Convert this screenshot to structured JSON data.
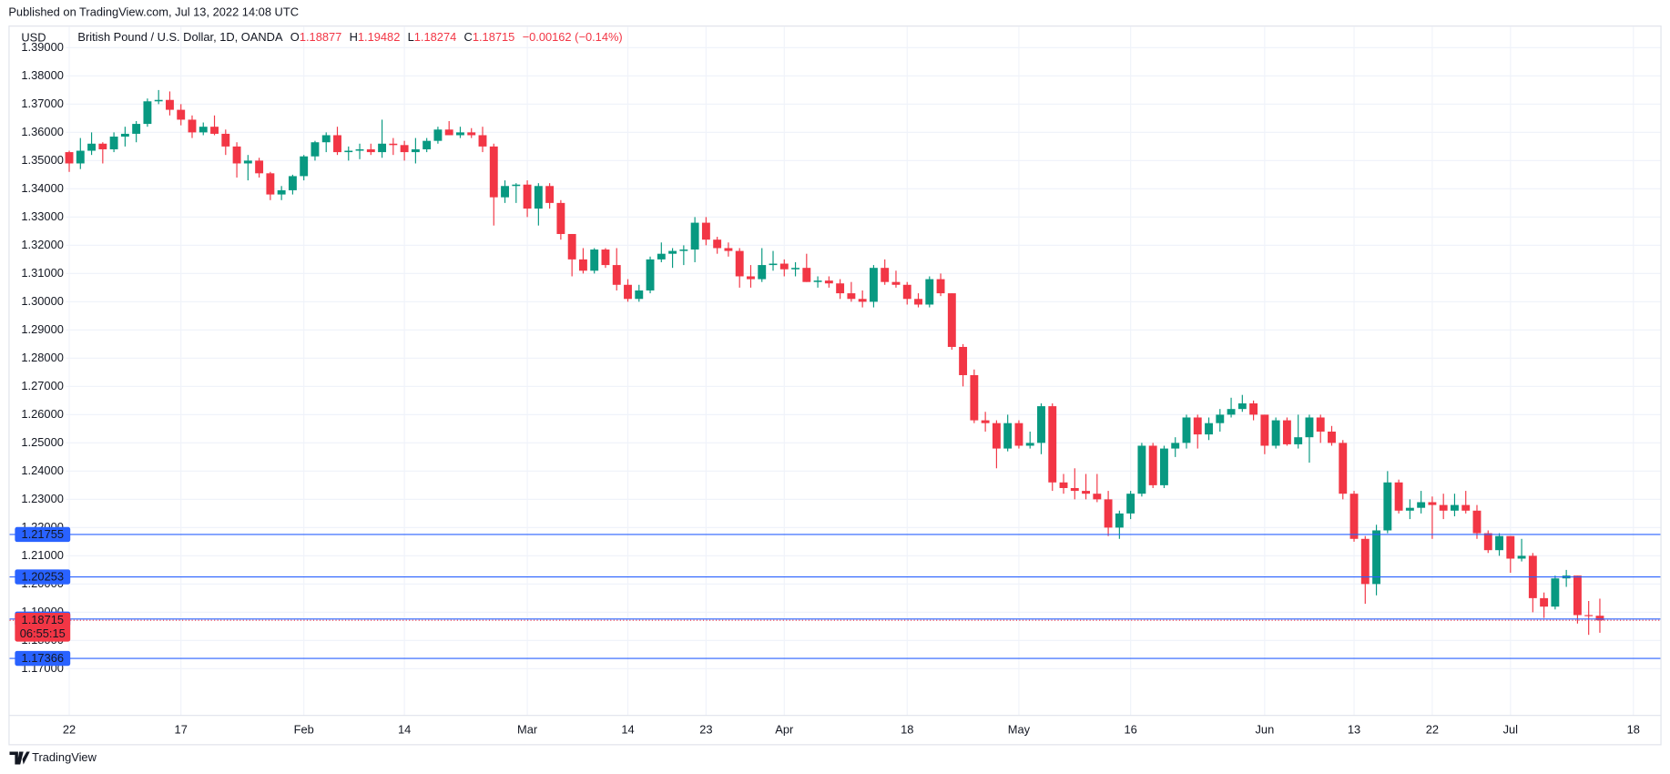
{
  "header": {
    "published": "Published on TradingView.com, Jul 13, 2022 14:08 UTC",
    "brand": "TradingView"
  },
  "chart_data": {
    "type": "candlestick",
    "currency": "USD",
    "symbol": "British Pound / U.S. Dollar, 1D, OANDA",
    "legend_keys": [
      "O",
      "H",
      "L",
      "C"
    ],
    "change": "−0.00162 (−0.14%)",
    "countdown": "06:55:15",
    "up_color": "#089981",
    "down_color": "#f23645",
    "line_color": "#2962ff",
    "grid": true,
    "categories": [
      "22",
      null,
      null,
      null,
      null,
      null,
      null,
      null,
      null,
      null,
      "17",
      null,
      null,
      null,
      null,
      null,
      null,
      null,
      null,
      null,
      null,
      "Feb",
      null,
      null,
      null,
      null,
      null,
      null,
      null,
      null,
      "14",
      null,
      null,
      null,
      null,
      null,
      null,
      null,
      null,
      null,
      null,
      "Mar",
      null,
      null,
      null,
      null,
      null,
      null,
      null,
      null,
      "14",
      null,
      null,
      null,
      null,
      null,
      null,
      "23",
      null,
      null,
      null,
      null,
      null,
      null,
      "Apr",
      null,
      null,
      null,
      null,
      null,
      null,
      null,
      null,
      null,
      null,
      "18",
      null,
      null,
      null,
      null,
      null,
      null,
      null,
      null,
      null,
      "May",
      null,
      null,
      null,
      null,
      null,
      null,
      null,
      null,
      null,
      "16",
      null,
      null,
      null,
      null,
      null,
      null,
      null,
      null,
      null,
      null,
      null,
      "Jun",
      null,
      null,
      null,
      null,
      null,
      null,
      null,
      "13",
      null,
      null,
      null,
      null,
      null,
      null,
      "22",
      null,
      null,
      null,
      null,
      null,
      null,
      "Jul",
      null,
      null,
      null,
      null,
      null,
      null,
      null,
      null,
      null,
      null,
      "18"
    ],
    "open": [
      1.353,
      1.349,
      1.3535,
      1.356,
      1.354,
      1.3585,
      1.3595,
      1.363,
      1.371,
      1.3715,
      1.368,
      1.3645,
      1.36,
      1.362,
      1.3595,
      1.355,
      1.349,
      1.35,
      1.3455,
      1.338,
      1.3395,
      1.3445,
      1.3515,
      1.3565,
      1.359,
      1.353,
      1.3535,
      1.354,
      1.353,
      1.356,
      1.3555,
      1.353,
      1.354,
      1.357,
      1.361,
      1.359,
      1.36,
      1.359,
      1.355,
      1.337,
      1.341,
      1.3415,
      1.333,
      1.341,
      1.335,
      1.324,
      1.315,
      1.311,
      1.3185,
      1.313,
      1.306,
      1.301,
      1.304,
      1.315,
      1.317,
      1.318,
      1.3185,
      1.328,
      1.322,
      1.319,
      1.318,
      1.309,
      1.308,
      1.313,
      1.3135,
      1.3115,
      1.312,
      1.307,
      1.3075,
      1.3065,
      1.303,
      1.301,
      1.3,
      1.312,
      1.307,
      1.306,
      1.301,
      1.299,
      1.308,
      1.303,
      1.284,
      1.274,
      1.258,
      1.257,
      1.248,
      1.257,
      1.249,
      1.25,
      1.263,
      1.236,
      1.234,
      1.233,
      1.232,
      1.23,
      1.22,
      1.225,
      1.232,
      1.249,
      1.235,
      1.248,
      1.25,
      1.259,
      1.253,
      1.257,
      1.26,
      1.262,
      1.264,
      1.26,
      1.249,
      1.258,
      1.2495,
      1.252,
      1.259,
      1.254,
      1.25,
      1.232,
      1.216,
      1.2,
      1.219,
      1.236,
      1.226,
      1.227,
      1.229,
      1.228,
      1.226,
      1.228,
      1.226,
      1.218,
      1.212,
      1.217,
      1.209,
      1.21,
      1.195,
      1.192,
      1.202,
      1.203,
      1.189,
      1.18877,
      null,
      null,
      null
    ],
    "high": [
      1.3535,
      1.358,
      1.36,
      1.3565,
      1.36,
      1.362,
      1.364,
      1.372,
      1.375,
      1.3745,
      1.37,
      1.366,
      1.3635,
      1.366,
      1.361,
      1.3565,
      1.352,
      1.351,
      1.346,
      1.341,
      1.345,
      1.352,
      1.357,
      1.36,
      1.362,
      1.355,
      1.356,
      1.356,
      1.3645,
      1.358,
      1.357,
      1.358,
      1.358,
      1.362,
      1.364,
      1.362,
      1.3615,
      1.362,
      1.356,
      1.343,
      1.342,
      1.343,
      1.342,
      1.342,
      1.336,
      1.324,
      1.319,
      1.319,
      1.319,
      1.319,
      1.308,
      1.306,
      1.316,
      1.321,
      1.319,
      1.32,
      1.33,
      1.33,
      1.323,
      1.321,
      1.319,
      1.313,
      1.319,
      1.318,
      1.315,
      1.314,
      1.317,
      1.309,
      1.309,
      1.308,
      1.307,
      1.304,
      1.313,
      1.315,
      1.311,
      1.307,
      1.303,
      1.309,
      1.31,
      1.303,
      1.285,
      1.276,
      1.261,
      1.258,
      1.26,
      1.258,
      1.254,
      1.264,
      1.264,
      1.239,
      1.241,
      1.239,
      1.239,
      1.233,
      1.226,
      1.233,
      1.25,
      1.25,
      1.249,
      1.252,
      1.26,
      1.26,
      1.259,
      1.262,
      1.266,
      1.267,
      1.265,
      1.26,
      1.259,
      1.259,
      1.26,
      1.26,
      1.26,
      1.256,
      1.251,
      1.233,
      1.217,
      1.221,
      1.24,
      1.237,
      1.23,
      1.233,
      1.231,
      1.232,
      1.232,
      1.233,
      1.228,
      1.219,
      1.218,
      1.217,
      1.216,
      1.211,
      1.197,
      1.203,
      1.205,
      1.203,
      1.194,
      1.19482,
      null,
      null,
      null
    ],
    "low": [
      1.346,
      1.347,
      1.352,
      1.349,
      1.353,
      1.355,
      1.3565,
      1.362,
      1.37,
      1.366,
      1.3625,
      1.358,
      1.359,
      1.359,
      1.352,
      1.344,
      1.343,
      1.344,
      1.336,
      1.336,
      1.338,
      1.343,
      1.35,
      1.353,
      1.352,
      1.35,
      1.3505,
      1.352,
      1.351,
      1.352,
      1.35,
      1.349,
      1.353,
      1.356,
      1.359,
      1.358,
      1.358,
      1.353,
      1.327,
      1.335,
      1.335,
      1.33,
      1.327,
      1.333,
      1.322,
      1.309,
      1.31,
      1.31,
      1.312,
      1.304,
      1.3,
      1.3,
      1.303,
      1.314,
      1.312,
      1.313,
      1.314,
      1.32,
      1.317,
      1.316,
      1.305,
      1.305,
      1.307,
      1.311,
      1.309,
      1.309,
      1.307,
      1.305,
      1.305,
      1.301,
      1.3,
      1.298,
      1.298,
      1.306,
      1.305,
      1.299,
      1.298,
      1.298,
      1.302,
      1.283,
      1.27,
      1.257,
      1.254,
      1.241,
      1.247,
      1.248,
      1.248,
      1.246,
      1.233,
      1.232,
      1.23,
      1.23,
      1.229,
      1.217,
      1.216,
      1.223,
      1.231,
      1.234,
      1.234,
      1.245,
      1.248,
      1.248,
      1.251,
      1.254,
      1.259,
      1.261,
      1.258,
      1.246,
      1.248,
      1.249,
      1.248,
      1.243,
      1.25,
      1.249,
      1.23,
      1.215,
      1.193,
      1.196,
      1.218,
      1.225,
      1.223,
      1.225,
      1.216,
      1.223,
      1.224,
      1.225,
      1.216,
      1.211,
      1.21,
      1.204,
      1.208,
      1.19,
      1.188,
      1.191,
      1.199,
      1.186,
      1.182,
      1.18274,
      null,
      null,
      null
    ],
    "close": [
      1.349,
      1.3535,
      1.356,
      1.354,
      1.3585,
      1.3595,
      1.363,
      1.371,
      1.3715,
      1.368,
      1.3645,
      1.36,
      1.362,
      1.3595,
      1.355,
      1.349,
      1.35,
      1.3455,
      1.338,
      1.3395,
      1.3445,
      1.3515,
      1.3565,
      1.359,
      1.353,
      1.3535,
      1.354,
      1.353,
      1.356,
      1.3555,
      1.353,
      1.354,
      1.357,
      1.361,
      1.359,
      1.36,
      1.359,
      1.355,
      1.337,
      1.341,
      1.3415,
      1.333,
      1.341,
      1.335,
      1.324,
      1.315,
      1.311,
      1.3185,
      1.313,
      1.306,
      1.301,
      1.304,
      1.315,
      1.317,
      1.318,
      1.3185,
      1.328,
      1.322,
      1.319,
      1.318,
      1.309,
      1.308,
      1.313,
      1.3135,
      1.3115,
      1.312,
      1.307,
      1.3075,
      1.3065,
      1.303,
      1.301,
      1.3,
      1.312,
      1.307,
      1.306,
      1.301,
      1.299,
      1.308,
      1.303,
      1.284,
      1.274,
      1.258,
      1.257,
      1.248,
      1.257,
      1.249,
      1.25,
      1.263,
      1.236,
      1.234,
      1.233,
      1.232,
      1.23,
      1.22,
      1.225,
      1.232,
      1.249,
      1.235,
      1.248,
      1.25,
      1.259,
      1.253,
      1.257,
      1.26,
      1.262,
      1.264,
      1.26,
      1.249,
      1.258,
      1.2495,
      1.252,
      1.259,
      1.254,
      1.25,
      1.232,
      1.216,
      1.2,
      1.219,
      1.236,
      1.226,
      1.227,
      1.229,
      1.228,
      1.226,
      1.228,
      1.226,
      1.218,
      1.212,
      1.217,
      1.209,
      1.21,
      1.195,
      1.192,
      1.202,
      1.203,
      1.189,
      1.18877,
      1.18715,
      null,
      null,
      null
    ],
    "ylim": [
      1.3903,
      1.1625
    ],
    "yticks": [
      {
        "value": 1.39,
        "label": "1.39000"
      },
      {
        "value": 1.38,
        "label": "1.38000"
      },
      {
        "value": 1.37,
        "label": "1.37000"
      },
      {
        "value": 1.36,
        "label": "1.36000"
      },
      {
        "value": 1.35,
        "label": "1.35000"
      },
      {
        "value": 1.34,
        "label": "1.34000"
      },
      {
        "value": 1.33,
        "label": "1.33000"
      },
      {
        "value": 1.32,
        "label": "1.32000"
      },
      {
        "value": 1.31,
        "label": "1.31000"
      },
      {
        "value": 1.3,
        "label": "1.30000"
      },
      {
        "value": 1.29,
        "label": "1.29000"
      },
      {
        "value": 1.28,
        "label": "1.28000"
      },
      {
        "value": 1.27,
        "label": "1.27000"
      },
      {
        "value": 1.26,
        "label": "1.26000"
      },
      {
        "value": 1.25,
        "label": "1.25000"
      },
      {
        "value": 1.24,
        "label": "1.24000"
      },
      {
        "value": 1.23,
        "label": "1.23000"
      },
      {
        "value": 1.22,
        "label": "1.22000"
      },
      {
        "value": 1.21,
        "label": "1.21000"
      },
      {
        "value": 1.2,
        "label": "1.20000"
      },
      {
        "value": 1.19,
        "label": "1.19000"
      },
      {
        "value": 1.18,
        "label": "1.18000"
      },
      {
        "value": 1.17,
        "label": "1.17000"
      }
    ],
    "price_lines": [
      1.21755,
      1.20253,
      1.18761,
      1.17366
    ]
  }
}
